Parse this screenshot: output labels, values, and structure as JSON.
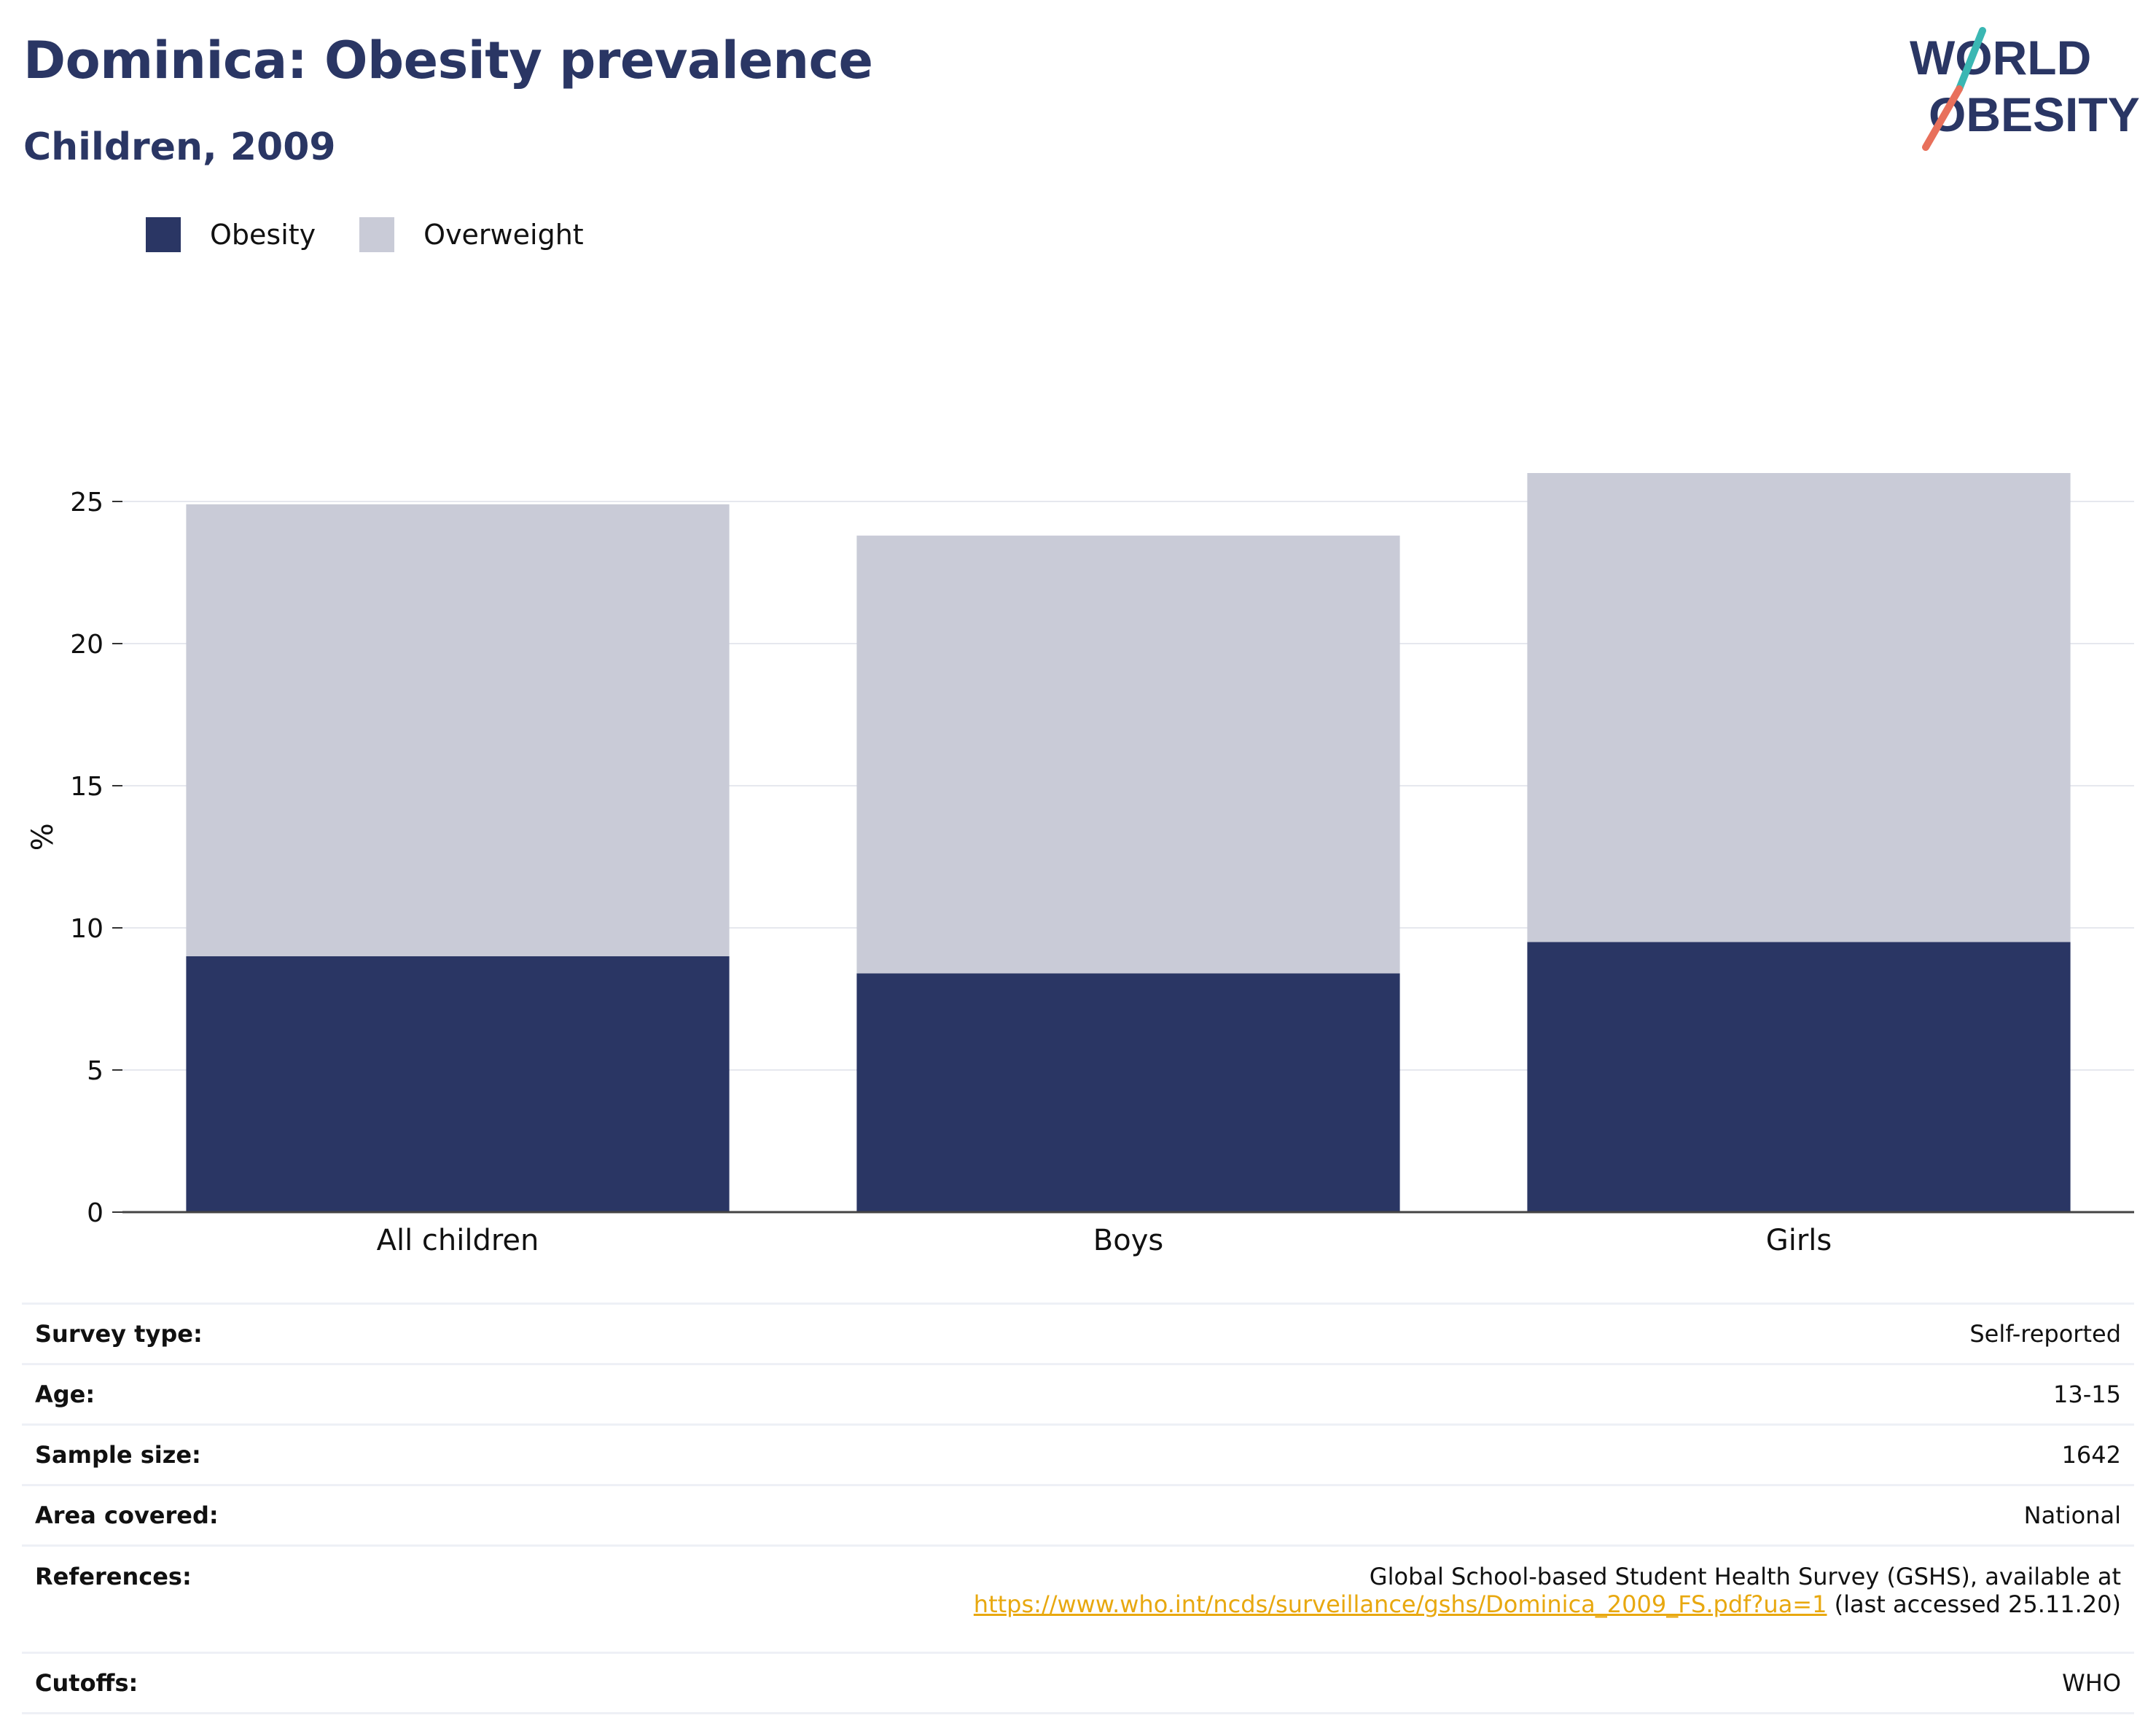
{
  "title": "Dominica: Obesity prevalence",
  "subtitle": "Children, 2009",
  "logo": {
    "line1": "WORLD",
    "line2": "OBESITY"
  },
  "legend": [
    {
      "label": "Obesity",
      "color": "#2a3664"
    },
    {
      "label": "Overweight",
      "color": "#c9cbd7"
    }
  ],
  "chart_data": {
    "type": "bar",
    "stacked": true,
    "categories": [
      "All children",
      "Boys",
      "Girls"
    ],
    "series": [
      {
        "name": "Obesity",
        "color": "#2a3664",
        "values": [
          9.0,
          8.4,
          9.5
        ]
      },
      {
        "name": "Overweight",
        "color": "#c9cbd7",
        "values": [
          15.9,
          15.4,
          16.5
        ]
      }
    ],
    "ylabel": "%",
    "ylim": [
      0,
      27
    ],
    "yticks": [
      0,
      5,
      10,
      15,
      20,
      25
    ],
    "grid": true,
    "legend_position": "top-left"
  },
  "meta": {
    "survey_type": {
      "label": "Survey type:",
      "value": "Self-reported"
    },
    "age": {
      "label": "Age:",
      "value": "13-15"
    },
    "sample_size": {
      "label": "Sample size:",
      "value": "1642"
    },
    "area": {
      "label": "Area covered:",
      "value": "National"
    },
    "references": {
      "label": "References:",
      "line1": "Global School-based Student Health Survey (GSHS), available at",
      "link": "https://www.who.int/ncds/surveillance/gshs/Dominica_2009_FS.pdf?ua=1",
      "suffix": " (last accessed 25.11.20)"
    },
    "cutoffs": {
      "label": "Cutoffs:",
      "value": "WHO"
    }
  }
}
